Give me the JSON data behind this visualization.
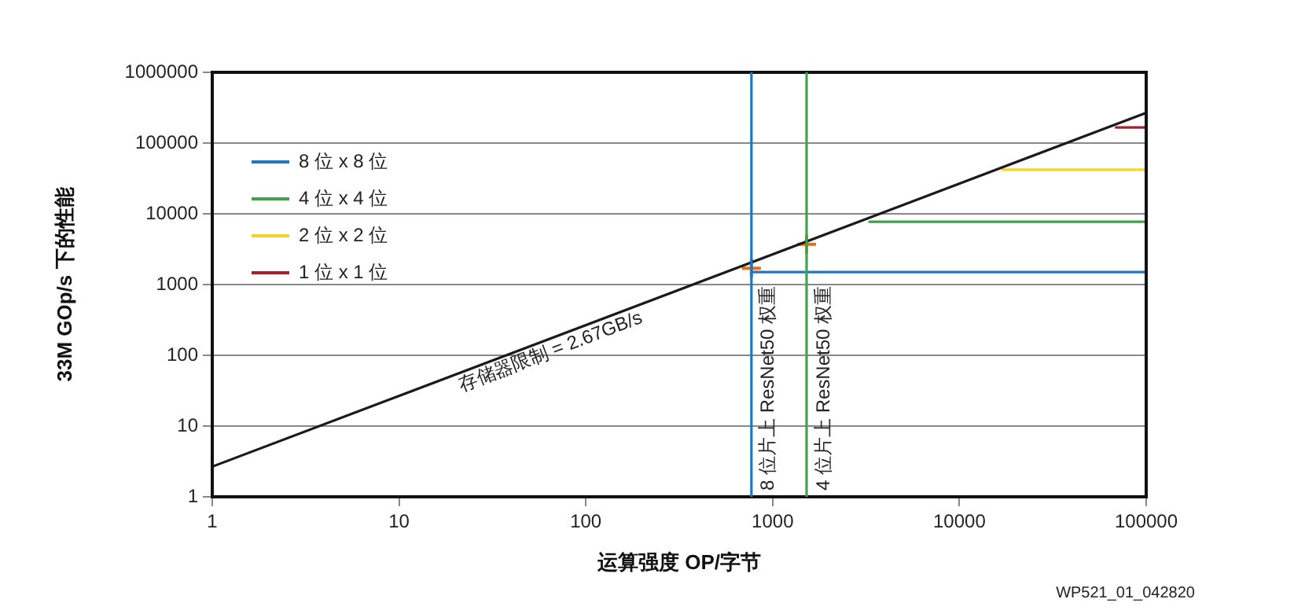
{
  "chart_data": {
    "type": "line",
    "xlabel": "运算强度 OP/字节",
    "ylabel": "33M GOp/s 下的性能",
    "log": "xy",
    "grid": "y",
    "legend": "top left",
    "xlim": [
      1,
      100000
    ],
    "xticks": [
      1,
      10,
      100,
      1000,
      10000,
      100000
    ],
    "ylim": [
      1,
      1000000
    ],
    "yticks": [
      1,
      10,
      100,
      1000,
      10000,
      100000,
      1000000
    ],
    "marker": "none",
    "line_style": "solid",
    "series": [
      {
        "color": "#1a1a1a",
        "x": [
          1,
          100000
        ],
        "values": [
          2.67,
          267000
        ]
      },
      {
        "name": "8 位 x 8 位",
        "color": "#1f77c4",
        "x": [
          770,
          100000
        ],
        "values": [
          1500,
          1500
        ]
      },
      {
        "name": "4 位 x 4 位",
        "color": "#3fa34d",
        "x": [
          3300,
          100000
        ],
        "values": [
          7700,
          7700
        ]
      },
      {
        "name": "2 位 x 2 位",
        "color": "#f5d327",
        "x": [
          17000,
          100000
        ],
        "values": [
          42000,
          42000
        ]
      },
      {
        "name": "1 位 x 1 位",
        "color": "#a8202c",
        "x": [
          69000,
          100000
        ],
        "values": [
          166000,
          166000
        ]
      },
      {
        "type": "scatter",
        "marker": "cross",
        "color": "#e0701a",
        "x": [
          770,
          1520
        ],
        "values": [
          1700,
          3700
        ]
      }
    ],
    "ref_lines": [
      {
        "axis": "x",
        "value": 770,
        "label": "8 位片上 ResNet50 权重",
        "color": "#1f77c4"
      },
      {
        "axis": "x",
        "value": 1520,
        "label": "4 位片上 ResNet50 权重",
        "color": "#3fa34d"
      }
    ],
    "annotations": [
      {
        "text": "存储器限制 = 2.67GB/s",
        "x": 20,
        "y": 53.4
      },
      "WP521_01_042820"
    ]
  }
}
